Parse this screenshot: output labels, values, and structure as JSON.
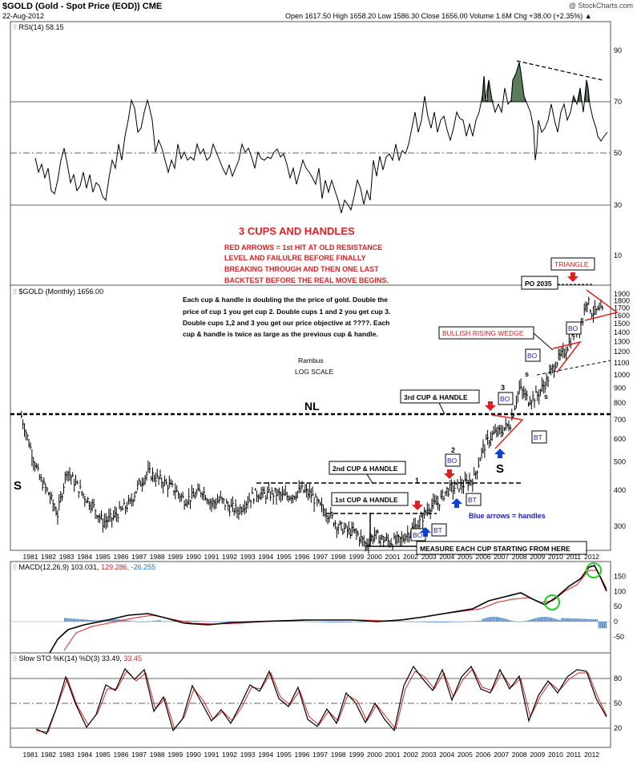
{
  "header": {
    "ticker": "$GOLD (Gold - Spot Price (EOD)) CME",
    "date": "22-Aug-2012",
    "ohlc": "Open 1617.50  High 1658.20  Low 1586.30  Close 1656.00  Volume 1.6M  Chg +38.00 (+2.35%) ▲",
    "credit": "@ StockCharts.com"
  },
  "panels": {
    "rsi": {
      "label": "RSI(14) 58.15",
      "ticks": [
        "90",
        "70",
        "50",
        "30"
      ]
    },
    "price": {
      "label": "$GOLD (Monthly) 1656.00"
    },
    "macd": {
      "label": "MACD(12,26,9) 103.031,",
      "v2": "129.286,",
      "v3": "-26.255",
      "ticks": [
        "150",
        "100",
        "50",
        "0",
        "-50"
      ]
    },
    "sto": {
      "label": "Slow STO %K(14) %D(3) 33.49,",
      "v2": "33.45",
      "ticks": [
        "80",
        "50",
        "20"
      ]
    }
  },
  "annotations": {
    "heading": "3 CUPS AND HANDLES",
    "red_note": [
      "RED ARROWS = 1st HIT AT OLD RESISTANCE",
      "LEVEL AND FAILULRE BEFORE FINALLY",
      "BREAKING THROUGH AND THEN ONE LAST",
      "BACKTEST BEFORE THE REAL MOVE BEGINS."
    ],
    "black_note": [
      "Each cup & handle is doubling the the price of gold. Double the",
      "price of cup 1 you get cup 2. Double cups 1 and 2 you get cup 3.",
      "Double cups 1,2 and 3 you get our price objective at ????. Each",
      "cup & handle is twice as large as the previous cup & handle."
    ],
    "rambus": "Rambus",
    "log_scale": "LOG SCALE",
    "nl": "NL",
    "s": "S",
    "small_s": "s",
    "cup3": "3rd CUP & HANDLE",
    "cup2": "2nd CUP & HANDLE",
    "cup1": "1st CUP & HANDLE",
    "measure": "MEASURE EACH CUP STARTING FROM HERE",
    "blue_note": "Blue arrows = handles",
    "wedge": "BULLISH RISING WEDGE",
    "triangle": "TRIANGLE",
    "po": "PO 2035",
    "bo": "BO",
    "bt": "BT",
    "num1": "1",
    "num2": "2",
    "num3": "3",
    "ten": "10"
  },
  "chart_data": {
    "type": "line",
    "title": "$GOLD (Gold - Spot Price (EOD)) CME",
    "log_scale": true,
    "price_ticks": [
      1900,
      1800,
      1700,
      1600,
      1500,
      1400,
      1300,
      1200,
      1100,
      1000,
      900,
      800,
      700,
      600,
      500,
      400,
      300
    ],
    "ylim": [
      240,
      1950
    ],
    "years": [
      "1981",
      "1982",
      "1983",
      "1984",
      "1985",
      "1986",
      "1987",
      "1988",
      "1989",
      "1990",
      "1991",
      "1992",
      "1993",
      "1994",
      "1995",
      "1996",
      "1997",
      "1998",
      "1999",
      "2000",
      "2001",
      "2002",
      "2003",
      "2004",
      "2005",
      "2006",
      "2007",
      "2008",
      "2009",
      "2010",
      "2011",
      "2012"
    ],
    "price_series": {
      "name": "$GOLD (Monthly)",
      "x": [
        1980.5,
        1981.0,
        1981.5,
        1982.0,
        1982.5,
        1983.0,
        1983.5,
        1984.0,
        1984.5,
        1985.0,
        1985.5,
        1986.0,
        1986.5,
        1987.0,
        1987.5,
        1988.0,
        1988.5,
        1989.0,
        1989.5,
        1990.0,
        1990.5,
        1991.0,
        1991.5,
        1992.0,
        1992.5,
        1993.0,
        1993.5,
        1994.0,
        1994.5,
        1995.0,
        1995.5,
        1996.0,
        1996.5,
        1997.0,
        1997.5,
        1998.0,
        1998.5,
        1999.0,
        1999.5,
        2000.0,
        2000.5,
        2001.0,
        2001.5,
        2002.0,
        2002.5,
        2003.0,
        2003.5,
        2004.0,
        2004.5,
        2005.0,
        2005.5,
        2006.0,
        2006.5,
        2007.0,
        2007.5,
        2008.0,
        2008.5,
        2009.0,
        2009.5,
        2010.0,
        2010.5,
        2011.0,
        2011.5,
        2011.7,
        2012.0,
        2012.6
      ],
      "y": [
        720,
        560,
        440,
        390,
        330,
        470,
        420,
        380,
        350,
        310,
        320,
        340,
        360,
        420,
        460,
        440,
        420,
        400,
        370,
        380,
        400,
        360,
        370,
        350,
        340,
        370,
        390,
        385,
        390,
        380,
        385,
        400,
        385,
        350,
        330,
        300,
        290,
        285,
        260,
        280,
        270,
        265,
        270,
        290,
        310,
        350,
        360,
        400,
        410,
        420,
        440,
        560,
        620,
        640,
        680,
        900,
        820,
        850,
        950,
        1100,
        1200,
        1380,
        1550,
        1850,
        1650,
        1656
      ]
    },
    "rsi": {
      "name": "RSI(14)",
      "ylim": [
        30,
        90
      ],
      "last": 58.15
    },
    "macd": {
      "name": "MACD(12,26,9)",
      "values": [
        103.031,
        129.286,
        -26.255
      ],
      "ylim": [
        -60,
        170
      ]
    },
    "stochastic": {
      "name": "Slow STO %K(14) %D(3)",
      "values": [
        33.49,
        33.45
      ],
      "ylim": [
        15,
        95
      ]
    },
    "colors": {
      "annotation_red": "#e02020",
      "arrow_blue": "#1040d0",
      "label_blue": "#2020c0",
      "signal_red": "#e02020",
      "hist_blue": "#5b8fc9",
      "rsi_fill": "#5b7d5b",
      "circle_green": "#22cc22"
    }
  }
}
